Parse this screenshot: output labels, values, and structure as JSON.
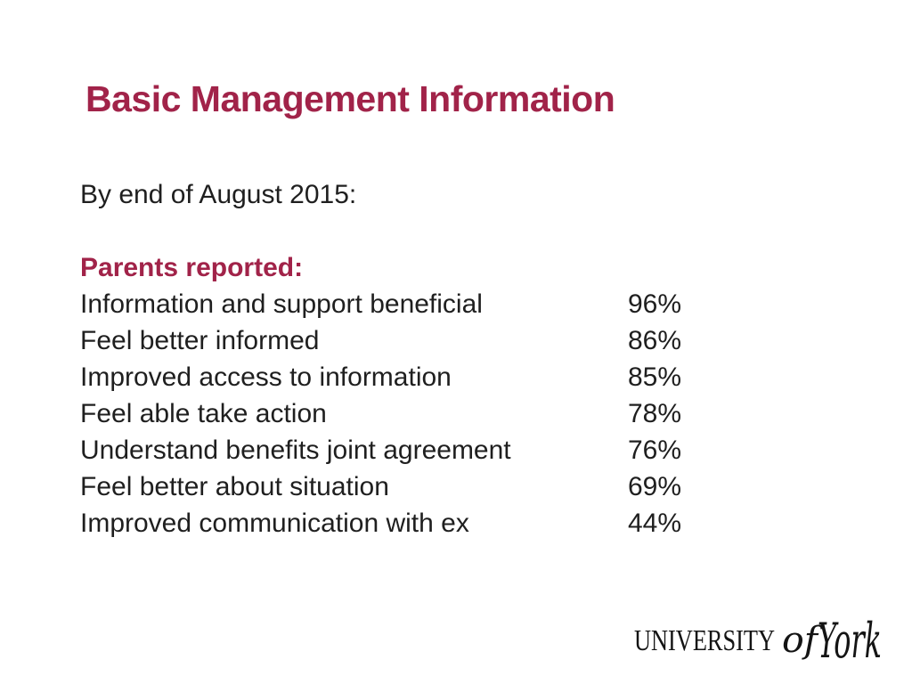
{
  "slide": {
    "title": "Basic Management Information",
    "subtitle": "By end of August 2015:",
    "section_heading": "Parents reported:",
    "findings": [
      {
        "label": "Information and support beneficial",
        "value": "96%"
      },
      {
        "label": "Feel better informed",
        "value": "86%"
      },
      {
        "label": "Improved access to information",
        "value": "85%"
      },
      {
        "label": "Feel able take action",
        "value": "78%"
      },
      {
        "label": "Understand benefits joint agreement",
        "value": "76%"
      },
      {
        "label": "Feel better about situation",
        "value": "69%"
      },
      {
        "label": "Improved communication with ex",
        "value": "44%"
      }
    ],
    "logo": {
      "university": "UNIVERSITY",
      "of": "of",
      "york": "York"
    },
    "colors": {
      "accent_maroon": "#a12349",
      "body_text": "#1f1f1f",
      "background": "#ffffff",
      "logo_black": "#141414"
    }
  },
  "chart_data": {
    "type": "table",
    "title": "Basic Management Information",
    "subtitle": "By end of August 2015:",
    "group": "Parents reported:",
    "categories": [
      "Information and support beneficial",
      "Feel better informed",
      "Improved access to information",
      "Feel able take action",
      "Understand benefits joint agreement",
      "Feel better about situation",
      "Improved communication with ex"
    ],
    "values_percent": [
      96,
      86,
      85,
      78,
      76,
      69,
      44
    ]
  }
}
